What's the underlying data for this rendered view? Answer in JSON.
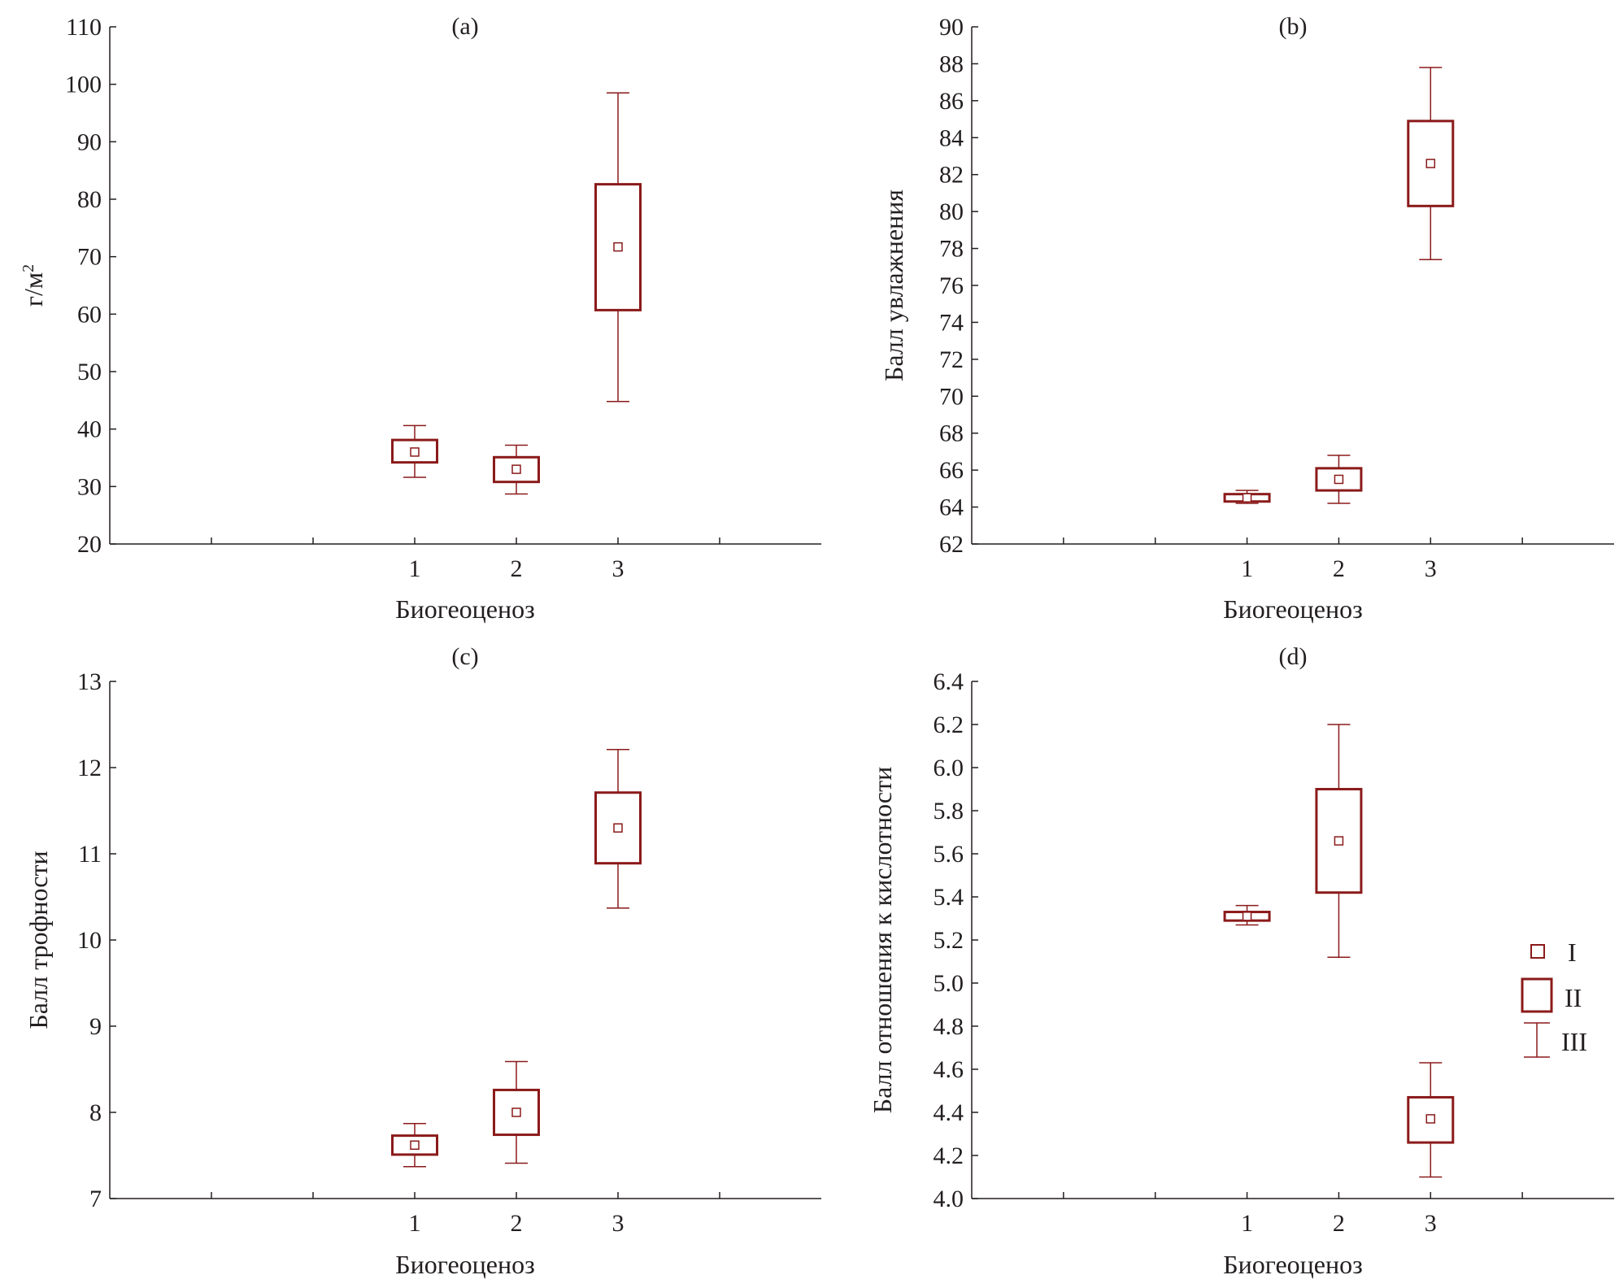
{
  "colors": {
    "box": "#8b1a1a",
    "axis": "#231f20",
    "background": "#ffffff"
  },
  "chart_data": [
    {
      "type": "box",
      "panel": "(a)",
      "title": "(a)",
      "xlabel": "Биогеоценоз",
      "ylabel": "г/м²",
      "ylabel_base": "г/м",
      "ylabel_sup": "2",
      "categories": [
        "1",
        "2",
        "3"
      ],
      "x_slots": 6,
      "x_positions": [
        3,
        4,
        5
      ],
      "ylim": [
        20,
        110
      ],
      "yticks": [
        20,
        30,
        40,
        50,
        60,
        70,
        80,
        90,
        100,
        110
      ],
      "ytick_labels": [
        "20",
        "30",
        "40",
        "50",
        "60",
        "70",
        "80",
        "90",
        "100",
        "110"
      ],
      "boxes": [
        {
          "category": "1",
          "mean": 36,
          "q1": 34.2,
          "q3": 38.1,
          "min": 31.6,
          "max": 40.6
        },
        {
          "category": "2",
          "mean": 33,
          "q1": 30.8,
          "q3": 35.1,
          "min": 28.7,
          "max": 37.2
        },
        {
          "category": "3",
          "mean": 71.7,
          "q1": 60.7,
          "q3": 82.6,
          "min": 44.8,
          "max": 98.5
        }
      ]
    },
    {
      "type": "box",
      "panel": "(b)",
      "title": "(b)",
      "xlabel": "Биогеоценоз",
      "ylabel": "Балл увлажнения",
      "categories": [
        "1",
        "2",
        "3"
      ],
      "x_slots": 6,
      "x_positions": [
        3,
        4,
        5
      ],
      "ylim": [
        62,
        90
      ],
      "yticks": [
        62,
        64,
        66,
        68,
        70,
        72,
        74,
        76,
        78,
        80,
        82,
        84,
        86,
        88,
        90
      ],
      "ytick_labels": [
        "62",
        "64",
        "66",
        "68",
        "70",
        "72",
        "74",
        "76",
        "78",
        "80",
        "82",
        "84",
        "86",
        "88",
        "90"
      ],
      "boxes": [
        {
          "category": "1",
          "mean": 64.5,
          "q1": 64.3,
          "q3": 64.7,
          "min": 64.2,
          "max": 64.9
        },
        {
          "category": "2",
          "mean": 65.5,
          "q1": 64.9,
          "q3": 66.1,
          "min": 64.2,
          "max": 66.8
        },
        {
          "category": "3",
          "mean": 82.6,
          "q1": 80.3,
          "q3": 84.9,
          "min": 77.4,
          "max": 87.8
        }
      ]
    },
    {
      "type": "box",
      "panel": "(c)",
      "title": "(c)",
      "xlabel": "Биогеоценоз",
      "ylabel": "Балл трофности",
      "categories": [
        "1",
        "2",
        "3"
      ],
      "x_slots": 6,
      "x_positions": [
        3,
        4,
        5
      ],
      "ylim": [
        7,
        13
      ],
      "yticks": [
        7,
        8,
        9,
        10,
        11,
        12,
        13
      ],
      "ytick_labels": [
        "7",
        "8",
        "9",
        "10",
        "11",
        "12",
        "13"
      ],
      "boxes": [
        {
          "category": "1",
          "mean": 7.62,
          "q1": 7.51,
          "q3": 7.73,
          "min": 7.37,
          "max": 7.87
        },
        {
          "category": "2",
          "mean": 8.0,
          "q1": 7.74,
          "q3": 8.26,
          "min": 7.41,
          "max": 8.59
        },
        {
          "category": "3",
          "mean": 11.3,
          "q1": 10.89,
          "q3": 11.71,
          "min": 10.37,
          "max": 12.21
        }
      ]
    },
    {
      "type": "box",
      "panel": "(d)",
      "title": "(d)",
      "xlabel": "Биогеоценоз",
      "ylabel": "Балл отношения к кислотности",
      "categories": [
        "1",
        "2",
        "3"
      ],
      "x_slots": 6,
      "x_positions": [
        3,
        4,
        5
      ],
      "ylim": [
        4.0,
        6.4
      ],
      "yticks": [
        4.0,
        4.2,
        4.4,
        4.6,
        4.8,
        5.0,
        5.2,
        5.4,
        5.6,
        5.8,
        6.0,
        6.2,
        6.4
      ],
      "ytick_labels": [
        "4.0",
        "4.2",
        "4.4",
        "4.6",
        "4.8",
        "5.0",
        "5.2",
        "5.4",
        "5.6",
        "5.8",
        "6.0",
        "6.2",
        "6.4"
      ],
      "boxes": [
        {
          "category": "1",
          "mean": 5.31,
          "q1": 5.29,
          "q3": 5.33,
          "min": 5.27,
          "max": 5.36
        },
        {
          "category": "2",
          "mean": 5.66,
          "q1": 5.42,
          "q3": 5.9,
          "min": 5.12,
          "max": 6.2
        },
        {
          "category": "3",
          "mean": 4.37,
          "q1": 4.26,
          "q3": 4.47,
          "min": 4.1,
          "max": 4.63
        }
      ]
    }
  ],
  "legend": {
    "items": [
      {
        "symbol": "mean-marker",
        "label": "I"
      },
      {
        "symbol": "box",
        "label": "II"
      },
      {
        "symbol": "whisker",
        "label": "III"
      }
    ]
  }
}
